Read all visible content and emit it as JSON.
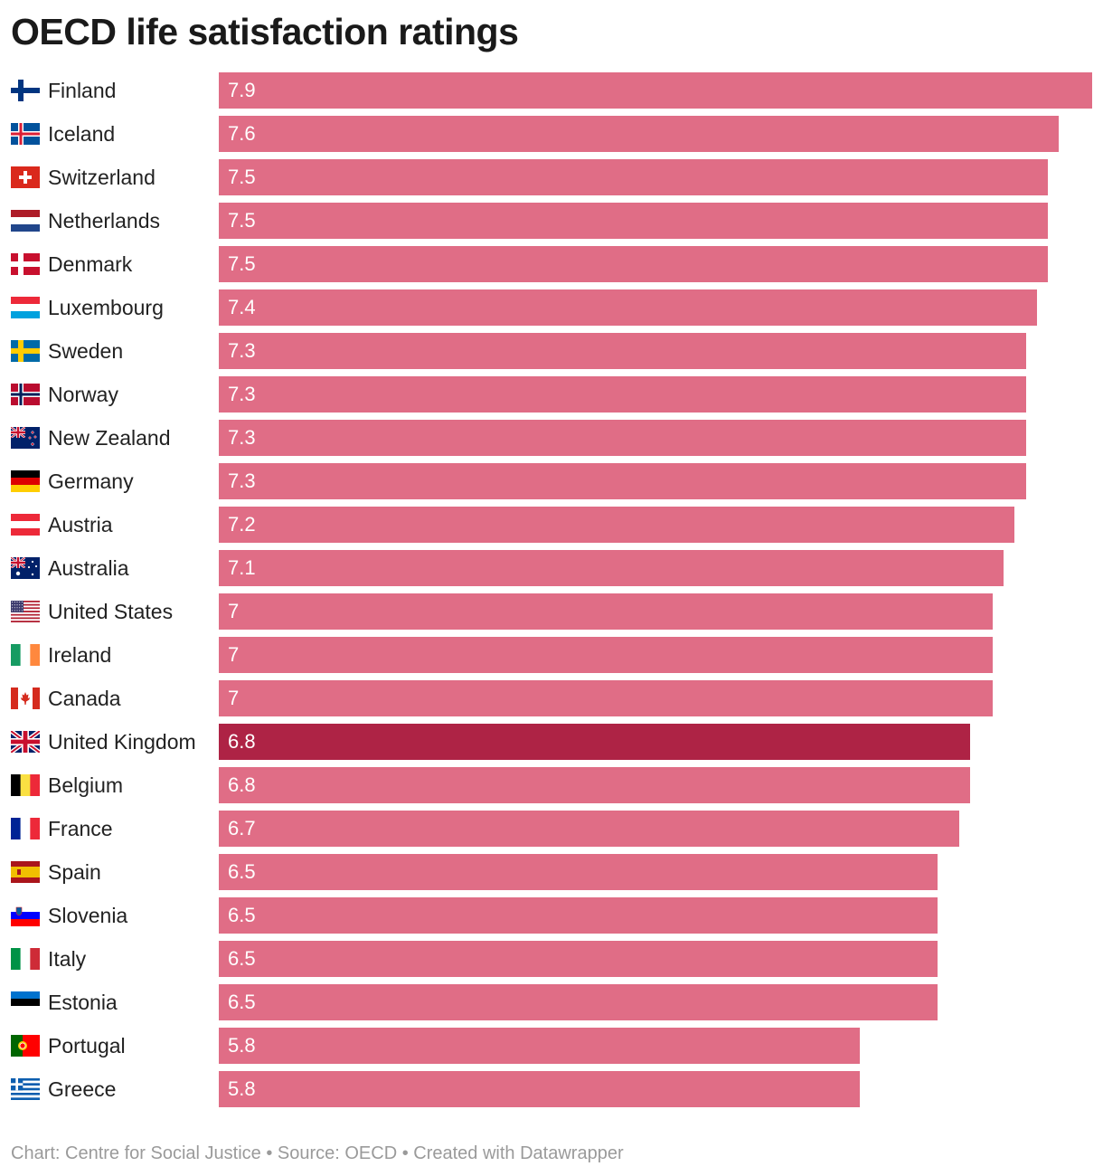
{
  "chart_data": {
    "type": "bar",
    "orientation": "horizontal",
    "title": "OECD life satisfaction ratings",
    "xlim": [
      0,
      7.9
    ],
    "categories": [
      "Finland",
      "Iceland",
      "Switzerland",
      "Netherlands",
      "Denmark",
      "Luxembourg",
      "Sweden",
      "Norway",
      "New Zealand",
      "Germany",
      "Austria",
      "Australia",
      "United States",
      "Ireland",
      "Canada",
      "United Kingdom",
      "Belgium",
      "France",
      "Spain",
      "Slovenia",
      "Italy",
      "Estonia",
      "Portugal",
      "Greece"
    ],
    "values": [
      7.9,
      7.6,
      7.5,
      7.5,
      7.5,
      7.4,
      7.3,
      7.3,
      7.3,
      7.3,
      7.2,
      7.1,
      7,
      7,
      7,
      6.8,
      6.8,
      6.7,
      6.5,
      6.5,
      6.5,
      6.5,
      5.8,
      5.8
    ],
    "highlight": "United Kingdom",
    "colors": {
      "default": "#e06d86",
      "highlight": "#ae2345"
    }
  },
  "footer": "Chart: Centre for Social Justice • Source: OECD • Created with Datawrapper",
  "flags": {
    "Finland": "finland-flag-icon",
    "Iceland": "iceland-flag-icon",
    "Switzerland": "switzerland-flag-icon",
    "Netherlands": "netherlands-flag-icon",
    "Denmark": "denmark-flag-icon",
    "Luxembourg": "luxembourg-flag-icon",
    "Sweden": "sweden-flag-icon",
    "Norway": "norway-flag-icon",
    "New Zealand": "new-zealand-flag-icon",
    "Germany": "germany-flag-icon",
    "Austria": "austria-flag-icon",
    "Australia": "australia-flag-icon",
    "United States": "united-states-flag-icon",
    "Ireland": "ireland-flag-icon",
    "Canada": "canada-flag-icon",
    "United Kingdom": "united-kingdom-flag-icon",
    "Belgium": "belgium-flag-icon",
    "France": "france-flag-icon",
    "Spain": "spain-flag-icon",
    "Slovenia": "slovenia-flag-icon",
    "Italy": "italy-flag-icon",
    "Estonia": "estonia-flag-icon",
    "Portugal": "portugal-flag-icon",
    "Greece": "greece-flag-icon"
  }
}
